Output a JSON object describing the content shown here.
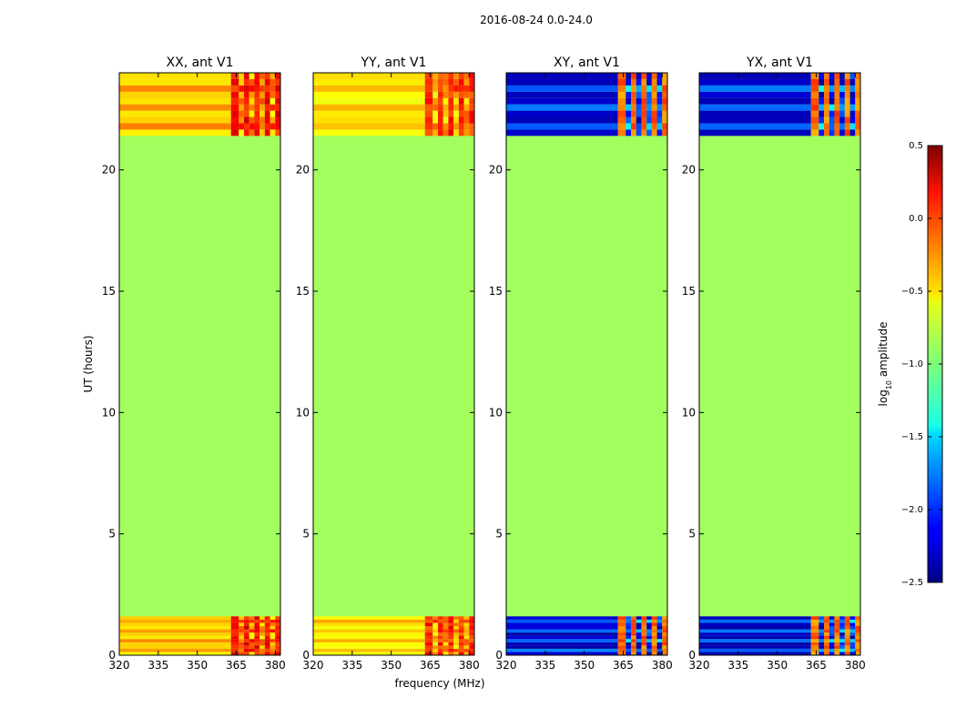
{
  "chart_data": {
    "type": "heatmap",
    "suptitle": "2016-08-24 0.0-24.0",
    "xlabel": "frequency (MHz)",
    "ylabel": "UT (hours)",
    "xlim": [
      320,
      382
    ],
    "ylim": [
      0,
      24
    ],
    "xticks": [
      "320",
      "335",
      "350",
      "365",
      "380"
    ],
    "yticks": [
      "0",
      "5",
      "10",
      "15",
      "20"
    ],
    "xtick_values": [
      320,
      335,
      350,
      365,
      380
    ],
    "ytick_values": [
      0,
      5,
      10,
      15,
      20
    ],
    "data_ut_ranges": [
      [
        0,
        1.6
      ],
      [
        21.4,
        24
      ]
    ],
    "fill_value": -0.9,
    "colorbar": {
      "label": "log10 amplitude",
      "label_main": "log",
      "label_sub": "10",
      "label_rest": " amplitude",
      "colormap": "jet",
      "vmin": -2.5,
      "vmax": 0.5,
      "ticks": [
        "0.5",
        "0.0",
        "−0.5",
        "−1.0",
        "−1.5",
        "−2.0",
        "−2.5"
      ],
      "tick_values": [
        0.5,
        0.0,
        -0.5,
        -1.0,
        -1.5,
        -2.0,
        -2.5
      ]
    },
    "panels": [
      {
        "title": "XX, ant V1",
        "band_low_level": -0.55,
        "band_high_level": -0.3,
        "rfi_level": 0.1
      },
      {
        "title": "YY, ant V1",
        "band_low_level": -0.6,
        "band_high_level": -0.4,
        "rfi_level": 0.0
      },
      {
        "title": "XY, ant V1",
        "band_low_level": -2.3,
        "band_high_level": -1.8,
        "rfi_level": -0.2
      },
      {
        "title": "YX, ant V1",
        "band_low_level": -2.3,
        "band_high_level": -1.8,
        "rfi_level": -0.2
      }
    ]
  }
}
